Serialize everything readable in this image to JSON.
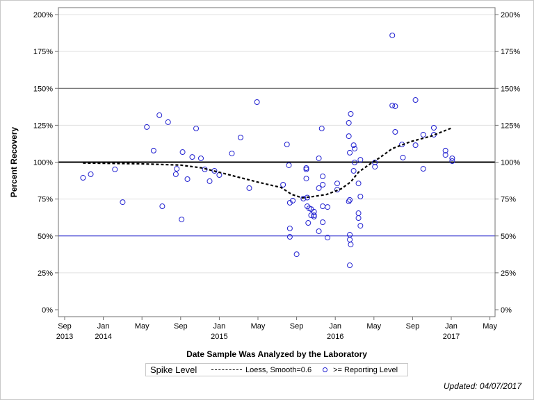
{
  "chart_data": {
    "type": "scatter",
    "xlabel": "Date Sample Was Analyzed by the Laboratory",
    "ylabel": "Percent Recovery",
    "x_units": "months since Sep 2013",
    "xlim": [
      -0.8,
      40.5
    ],
    "ylim": [
      -7,
      207
    ],
    "x_ticks": [
      {
        "m": 0,
        "l1": "Sep",
        "l2": "2013"
      },
      {
        "m": 4,
        "l1": "Jan",
        "l2": "2014"
      },
      {
        "m": 8,
        "l1": "May",
        "l2": ""
      },
      {
        "m": 12,
        "l1": "Sep",
        "l2": ""
      },
      {
        "m": 16,
        "l1": "Jan",
        "l2": "2015"
      },
      {
        "m": 20,
        "l1": "May",
        "l2": ""
      },
      {
        "m": 24,
        "l1": "Sep",
        "l2": ""
      },
      {
        "m": 28,
        "l1": "Jan",
        "l2": "2016"
      },
      {
        "m": 32,
        "l1": "May",
        "l2": ""
      },
      {
        "m": 36,
        "l1": "Sep",
        "l2": ""
      },
      {
        "m": 40,
        "l1": "Jan",
        "l2": "2017"
      },
      {
        "m": 44,
        "l1": "May",
        "l2": ""
      }
    ],
    "y_ticks": [
      {
        "v": 0,
        "l": "0%"
      },
      {
        "v": 25,
        "l": "25%"
      },
      {
        "v": 50,
        "l": "50%"
      },
      {
        "v": 75,
        "l": "75%"
      },
      {
        "v": 100,
        "l": "100%"
      },
      {
        "v": 125,
        "l": "125%"
      },
      {
        "v": 150,
        "l": "150%"
      },
      {
        "v": 175,
        "l": "175%"
      },
      {
        "v": 200,
        "l": "200%"
      }
    ],
    "reference_lines": [
      {
        "v": 100,
        "color": "#000000",
        "width": 2
      },
      {
        "v": 150,
        "color": "#555555",
        "width": 1
      },
      {
        "v": 50,
        "color": "#2020d0",
        "width": 1
      }
    ],
    "grid": true,
    "legend": {
      "title": "Spike Level",
      "position": "bottom",
      "entries": [
        "Loess, Smooth=0.6",
        ">= Reporting Level"
      ]
    },
    "loess": [
      [
        1.9,
        99.4
      ],
      [
        7.7,
        98.9
      ],
      [
        12.0,
        98.0
      ],
      [
        14.2,
        96.1
      ],
      [
        17.1,
        91.3
      ],
      [
        19.9,
        86.6
      ],
      [
        22.4,
        82.8
      ],
      [
        23.5,
        78.1
      ],
      [
        24.6,
        75.8
      ],
      [
        25.7,
        76.7
      ],
      [
        27.1,
        78.1
      ],
      [
        28.6,
        81.9
      ],
      [
        29.6,
        86.6
      ],
      [
        30.4,
        93.2
      ],
      [
        31.4,
        97.9
      ],
      [
        32.5,
        102.6
      ],
      [
        33.9,
        109.2
      ],
      [
        35.8,
        113.9
      ],
      [
        37.9,
        117.6
      ],
      [
        40.1,
        123.3
      ]
    ],
    "points": [
      [
        1.9,
        89.4
      ],
      [
        2.7,
        91.8
      ],
      [
        5.2,
        95.1
      ],
      [
        6.0,
        72.9
      ],
      [
        8.5,
        123.8
      ],
      [
        9.2,
        107.8
      ],
      [
        9.8,
        131.8
      ],
      [
        10.1,
        70.1
      ],
      [
        10.7,
        127.1
      ],
      [
        11.5,
        91.8
      ],
      [
        11.6,
        95.5
      ],
      [
        12.1,
        61.2
      ],
      [
        12.2,
        106.8
      ],
      [
        12.7,
        88.5
      ],
      [
        13.2,
        103.5
      ],
      [
        13.6,
        122.8
      ],
      [
        14.1,
        102.6
      ],
      [
        14.5,
        95.1
      ],
      [
        15.0,
        87.1
      ],
      [
        15.5,
        94.1
      ],
      [
        16.0,
        91.3
      ],
      [
        17.3,
        105.9
      ],
      [
        18.2,
        116.7
      ],
      [
        19.1,
        82.4
      ],
      [
        19.9,
        140.7
      ],
      [
        22.6,
        84.7
      ],
      [
        23.0,
        112.0
      ],
      [
        23.2,
        97.9
      ],
      [
        23.3,
        72.5
      ],
      [
        23.3,
        55.1
      ],
      [
        23.3,
        49.4
      ],
      [
        23.6,
        73.9
      ],
      [
        24.0,
        37.6
      ],
      [
        24.7,
        75.3
      ],
      [
        25.0,
        88.9
      ],
      [
        25.0,
        96.0
      ],
      [
        25.0,
        95.1
      ],
      [
        25.1,
        76.0
      ],
      [
        25.1,
        70.1
      ],
      [
        25.2,
        58.8
      ],
      [
        25.3,
        68.7
      ],
      [
        25.5,
        68.2
      ],
      [
        25.5,
        64.0
      ],
      [
        25.8,
        64.0
      ],
      [
        25.8,
        66.4
      ],
      [
        25.8,
        63.1
      ],
      [
        26.3,
        102.6
      ],
      [
        26.3,
        53.2
      ],
      [
        26.3,
        82.4
      ],
      [
        26.6,
        122.8
      ],
      [
        26.7,
        90.4
      ],
      [
        26.7,
        84.7
      ],
      [
        26.7,
        70.1
      ],
      [
        26.7,
        59.3
      ],
      [
        27.2,
        69.6
      ],
      [
        27.2,
        48.9
      ],
      [
        28.2,
        85.6
      ],
      [
        28.2,
        81.4
      ],
      [
        29.4,
        126.6
      ],
      [
        29.4,
        117.6
      ],
      [
        29.4,
        73.4
      ],
      [
        29.5,
        106.4
      ],
      [
        29.5,
        74.4
      ],
      [
        29.6,
        132.7
      ],
      [
        29.5,
        50.8
      ],
      [
        29.5,
        47.5
      ],
      [
        29.6,
        44.2
      ],
      [
        29.5,
        30.1
      ],
      [
        29.9,
        94.1
      ],
      [
        29.9,
        111.5
      ],
      [
        30.0,
        109.2
      ],
      [
        30.0,
        99.8
      ],
      [
        30.4,
        85.6
      ],
      [
        30.4,
        65.4
      ],
      [
        30.4,
        62.1
      ],
      [
        30.6,
        56.9
      ],
      [
        30.6,
        76.7
      ],
      [
        30.6,
        101.6
      ],
      [
        32.1,
        99.8
      ],
      [
        32.1,
        96.9
      ],
      [
        33.9,
        185.9
      ],
      [
        33.9,
        138.4
      ],
      [
        34.2,
        137.9
      ],
      [
        34.2,
        120.5
      ],
      [
        34.9,
        112.0
      ],
      [
        35.0,
        103.1
      ],
      [
        36.3,
        142.1
      ],
      [
        36.3,
        111.5
      ],
      [
        37.1,
        95.5
      ],
      [
        37.1,
        118.6
      ],
      [
        38.2,
        118.6
      ],
      [
        38.2,
        123.3
      ],
      [
        39.4,
        107.8
      ],
      [
        39.4,
        104.9
      ],
      [
        40.1,
        102.6
      ],
      [
        40.1,
        100.7
      ]
    ],
    "colors": {
      "points": "#2020d0",
      "loess": "#000000",
      "grid": "#e0e0e0"
    }
  },
  "footer": {
    "updated": "Updated: 04/07/2017"
  }
}
